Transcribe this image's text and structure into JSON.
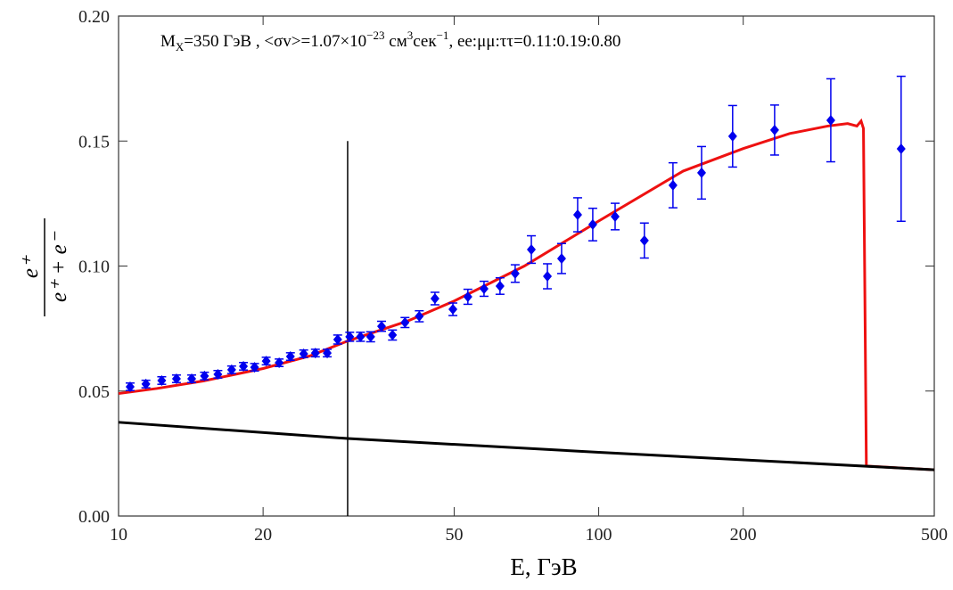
{
  "chart_data": {
    "type": "scatter",
    "xscale": "log",
    "xlim": [
      10,
      500
    ],
    "ylim": [
      0,
      0.2
    ],
    "xticks": [
      10,
      20,
      50,
      100,
      200,
      500
    ],
    "yticks": [
      {
        "value": 0,
        "label": "0.00"
      },
      0.05,
      {
        "value": 0.1,
        "label": "0.10"
      },
      0.15,
      {
        "value": 0.2,
        "label": "0.20"
      }
    ],
    "xlabel": "E, ГэВ",
    "ylabel": {
      "numerator": "e⁺",
      "denominator": "e⁺ + e⁻"
    },
    "annotation": [
      "M",
      "X",
      "=350 ГэВ , <σv>=1.07×10",
      "−23",
      " см",
      "3",
      "сек",
      "−1",
      ", ee:μμ:ττ=0.11:0.19:0.80"
    ],
    "vline": {
      "x": 30,
      "y": [
        0,
        0.15
      ],
      "color": "#000000"
    },
    "series": [
      {
        "type": "errorbar",
        "color": "#0000ee",
        "x": [
          10.57,
          11.4,
          12.3,
          13.2,
          14.2,
          15.1,
          16.1,
          17.2,
          18.2,
          19.2,
          20.3,
          21.6,
          22.8,
          24.3,
          25.7,
          27.2,
          28.6,
          30.3,
          31.9,
          33.5,
          35.3,
          37.2,
          39.5,
          42.3,
          45.6,
          49.7,
          53.4,
          57.7,
          62.3,
          67.0,
          72.4,
          78.2,
          83.7,
          90.4,
          97.2,
          108.2,
          124.5,
          142.8,
          163.8,
          190.1,
          232.5,
          304.4,
          426.5
        ],
        "values": [
          0.0517,
          0.0528,
          0.0542,
          0.0549,
          0.0549,
          0.056,
          0.0567,
          0.0585,
          0.0599,
          0.0595,
          0.062,
          0.0613,
          0.0638,
          0.0649,
          0.0652,
          0.0652,
          0.0706,
          0.0717,
          0.0717,
          0.0717,
          0.0759,
          0.0724,
          0.0774,
          0.0799,
          0.087,
          0.0827,
          0.0877,
          0.0909,
          0.092,
          0.097,
          0.1066,
          0.0959,
          0.103,
          0.1205,
          0.1166,
          0.1198,
          0.1102,
          0.1323,
          0.1373,
          0.1519,
          0.1544,
          0.1583,
          0.1469
        ],
        "errors": [
          0.0015,
          0.0015,
          0.0015,
          0.0015,
          0.0015,
          0.0015,
          0.0015,
          0.0015,
          0.0015,
          0.0015,
          0.0015,
          0.0015,
          0.0015,
          0.0015,
          0.0015,
          0.0015,
          0.0018,
          0.0018,
          0.0018,
          0.002,
          0.002,
          0.002,
          0.002,
          0.0022,
          0.0025,
          0.0025,
          0.003,
          0.003,
          0.0033,
          0.0035,
          0.0055,
          0.005,
          0.006,
          0.0068,
          0.0065,
          0.0053,
          0.007,
          0.009,
          0.0105,
          0.0123,
          0.01,
          0.0166,
          0.029
        ]
      },
      {
        "type": "line",
        "color": "#ee1111",
        "x": [
          10,
          12,
          15,
          20,
          25,
          30,
          40,
          50,
          70,
          100,
          150,
          200,
          250,
          300,
          330,
          345,
          352,
          356,
          358,
          361,
          400,
          500
        ],
        "values": [
          0.049,
          0.051,
          0.054,
          0.059,
          0.064,
          0.07,
          0.078,
          0.086,
          0.1,
          0.118,
          0.138,
          0.147,
          0.153,
          0.156,
          0.157,
          0.156,
          0.158,
          0.155,
          0.1,
          0.02,
          0.0195,
          0.0185
        ]
      },
      {
        "type": "line",
        "color": "#000000",
        "x": [
          10,
          30,
          100,
          500
        ],
        "values": [
          0.0375,
          0.031,
          0.0255,
          0.0185
        ]
      }
    ]
  }
}
